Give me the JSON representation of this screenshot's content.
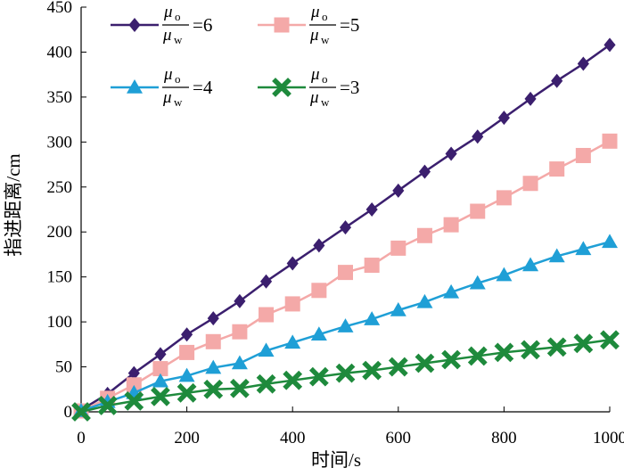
{
  "chart_data": {
    "type": "line",
    "title": "",
    "xlabel": "时间/s",
    "ylabel": "指进距离/cm",
    "xlim": [
      0,
      1000
    ],
    "ylim": [
      0,
      450
    ],
    "x_ticks": [
      0,
      200,
      400,
      600,
      800,
      1000
    ],
    "y_ticks": [
      0,
      50,
      100,
      150,
      200,
      250,
      300,
      350,
      400,
      450
    ],
    "grid": false,
    "legend_position": "top-left",
    "x": [
      0,
      50,
      100,
      150,
      200,
      250,
      300,
      350,
      400,
      450,
      500,
      550,
      600,
      650,
      700,
      750,
      800,
      850,
      900,
      950,
      1000
    ],
    "series": [
      {
        "name": "μo/μw=6",
        "label_numerator": "μ",
        "numerator_sub": "o",
        "label_denominator": "μ",
        "denominator_sub": "w",
        "label_suffix": "=6",
        "color": "#3b1f6e",
        "marker": "diamond",
        "values": [
          2,
          20,
          43,
          64,
          86,
          104,
          123,
          145,
          165,
          185,
          205,
          225,
          246,
          267,
          287,
          306,
          327,
          348,
          368,
          387,
          408
        ]
      },
      {
        "name": "μo/μw=5",
        "label_numerator": "μ",
        "numerator_sub": "o",
        "label_denominator": "μ",
        "denominator_sub": "w",
        "label_suffix": "=5",
        "color": "#f4a9a8",
        "marker": "square",
        "values": [
          1,
          15,
          30,
          48,
          66,
          78,
          89,
          108,
          120,
          135,
          155,
          163,
          182,
          196,
          208,
          223,
          238,
          254,
          270,
          285,
          301
        ]
      },
      {
        "name": "μo/μw=4",
        "label_numerator": "μ",
        "numerator_sub": "o",
        "label_denominator": "μ",
        "denominator_sub": "w",
        "label_suffix": "=4",
        "color": "#1f9fd6",
        "marker": "triangle",
        "values": [
          1,
          11,
          21,
          34,
          40,
          49,
          54,
          68,
          77,
          86,
          95,
          103,
          113,
          122,
          133,
          143,
          152,
          163,
          173,
          181,
          189
        ]
      },
      {
        "name": "μo/μw=3",
        "label_numerator": "μ",
        "numerator_sub": "o",
        "label_denominator": "μ",
        "denominator_sub": "w",
        "label_suffix": "=3",
        "color": "#1e8a3c",
        "marker": "x",
        "values": [
          0,
          7,
          12,
          17,
          21,
          25,
          26,
          31,
          35,
          39,
          43,
          46,
          50,
          54,
          58,
          62,
          66,
          69,
          72,
          76,
          80
        ]
      }
    ]
  }
}
